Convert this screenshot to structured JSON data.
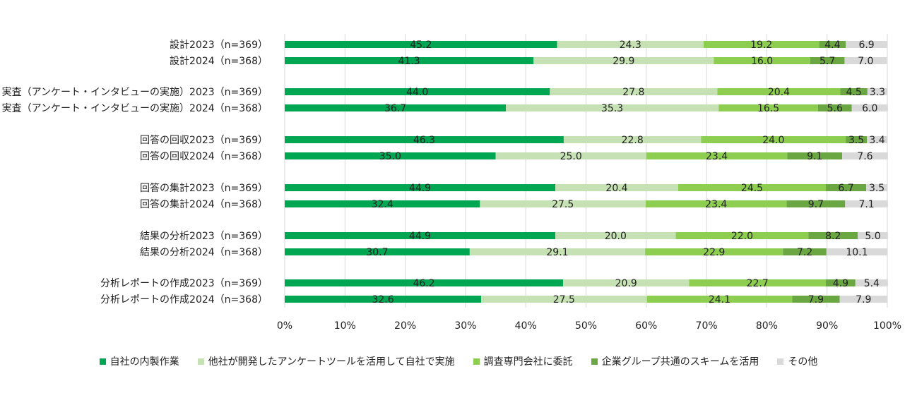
{
  "chart_data": {
    "type": "bar",
    "orientation": "horizontal",
    "stacked": true,
    "categories": [
      "設計2023（n=369）",
      "設計2024（n=368）",
      "実査（アンケート・インタビューの実施）2023（n=369）",
      "実査（アンケート・インタビューの実施）2024（n=368）",
      "回答の回収2023（n=369）",
      "回答の回収2024（n=368）",
      "回答の集計2023（n=369）",
      "回答の集計2024（n=368）",
      "結果の分析2023（n=369）",
      "結果の分析2024（n=368）",
      "分析レポートの作成2023（n=369）",
      "分析レポートの作成2024（n=368）"
    ],
    "series": [
      {
        "name": "自社の内製作業",
        "color": "#00a651",
        "values": [
          45.2,
          41.3,
          44.0,
          36.7,
          46.3,
          35.0,
          44.9,
          32.4,
          44.9,
          30.7,
          46.2,
          32.6
        ]
      },
      {
        "name": "他社が開発したアンケートツールを活用して自社で実施",
        "color": "#c6e2b4",
        "values": [
          24.3,
          29.9,
          27.8,
          35.3,
          22.8,
          25.0,
          20.4,
          27.5,
          20.0,
          29.1,
          20.9,
          27.5
        ]
      },
      {
        "name": "調査専門会社に委託",
        "color": "#8dce50",
        "values": [
          19.2,
          16.0,
          20.4,
          16.5,
          24.0,
          23.4,
          24.5,
          23.4,
          22.0,
          22.9,
          22.7,
          24.1
        ]
      },
      {
        "name": "企業グループ共通のスキームを活用",
        "color": "#6aa642",
        "values": [
          4.4,
          5.7,
          4.5,
          5.6,
          3.5,
          9.1,
          6.7,
          9.7,
          8.2,
          7.2,
          4.9,
          7.9
        ]
      },
      {
        "name": "その他",
        "color": "#d9d9d9",
        "values": [
          6.9,
          7.0,
          3.3,
          6.0,
          3.4,
          7.6,
          3.5,
          7.1,
          5.0,
          10.1,
          5.4,
          7.9
        ]
      }
    ],
    "xlim": [
      0,
      100
    ],
    "xticks": [
      "0%",
      "10%",
      "20%",
      "30%",
      "40%",
      "50%",
      "60%",
      "70%",
      "80%",
      "90%",
      "100%"
    ],
    "grid": true,
    "legend_position": "bottom"
  }
}
